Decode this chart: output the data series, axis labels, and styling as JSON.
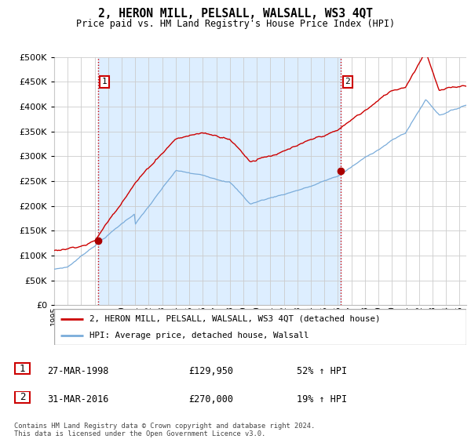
{
  "title": "2, HERON MILL, PELSALL, WALSALL, WS3 4QT",
  "subtitle": "Price paid vs. HM Land Registry's House Price Index (HPI)",
  "hpi_label": "HPI: Average price, detached house, Walsall",
  "property_label": "2, HERON MILL, PELSALL, WALSALL, WS3 4QT (detached house)",
  "sale1_date": "27-MAR-1998",
  "sale1_price": "£129,950",
  "sale1_pct": "52% ↑ HPI",
  "sale2_date": "31-MAR-2016",
  "sale2_price": "£270,000",
  "sale2_pct": "19% ↑ HPI",
  "footer": "Contains HM Land Registry data © Crown copyright and database right 2024.\nThis data is licensed under the Open Government Licence v3.0.",
  "hpi_color": "#7aacda",
  "property_color": "#cc0000",
  "sale_marker_color": "#aa0000",
  "ylim": [
    0,
    500000
  ],
  "yticks": [
    0,
    50000,
    100000,
    150000,
    200000,
    250000,
    300000,
    350000,
    400000,
    450000,
    500000
  ],
  "sale1_year": 1998.23,
  "sale1_value": 129950,
  "sale2_year": 2016.23,
  "sale2_value": 270000,
  "vline_color": "#cc0000",
  "vline_style": ":",
  "grid_color": "#cccccc",
  "shade_color": "#ddeeff",
  "background_color": "#ffffff",
  "label_box_color": "#cc0000"
}
